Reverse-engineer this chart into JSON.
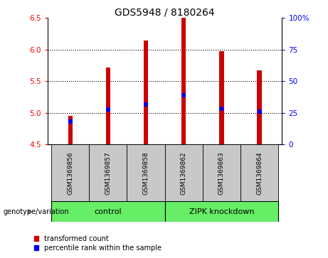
{
  "title": "GDS5948 / 8180264",
  "samples": [
    "GSM1369856",
    "GSM1369857",
    "GSM1369858",
    "GSM1369862",
    "GSM1369863",
    "GSM1369864"
  ],
  "red_tops": [
    4.95,
    5.72,
    6.15,
    6.5,
    5.98,
    5.67
  ],
  "blue_values": [
    4.86,
    5.05,
    5.13,
    5.28,
    5.06,
    5.02
  ],
  "bar_bottom": 4.5,
  "ylim_left": [
    4.5,
    6.5
  ],
  "ylim_right": [
    0,
    100
  ],
  "yticks_left": [
    4.5,
    5.0,
    5.5,
    6.0,
    6.5
  ],
  "yticks_right": [
    0,
    25,
    50,
    75,
    100
  ],
  "ytick_labels_right": [
    "0",
    "25",
    "50",
    "75",
    "100%"
  ],
  "control_label": "control",
  "zipk_label": "ZIPK knockdown",
  "genotype_label": "genotype/variation",
  "legend_red_label": "transformed count",
  "legend_blue_label": "percentile rank within the sample",
  "bar_color": "#CC0000",
  "blue_color": "#0000EE",
  "control_bg": "#66EE66",
  "zipk_bg": "#66EE66",
  "sample_bg": "#C8C8C8",
  "bar_width": 0.12,
  "title_fontsize": 10,
  "tick_fontsize": 7.5,
  "label_fontsize": 7.5,
  "sample_label_fontsize": 6.5
}
